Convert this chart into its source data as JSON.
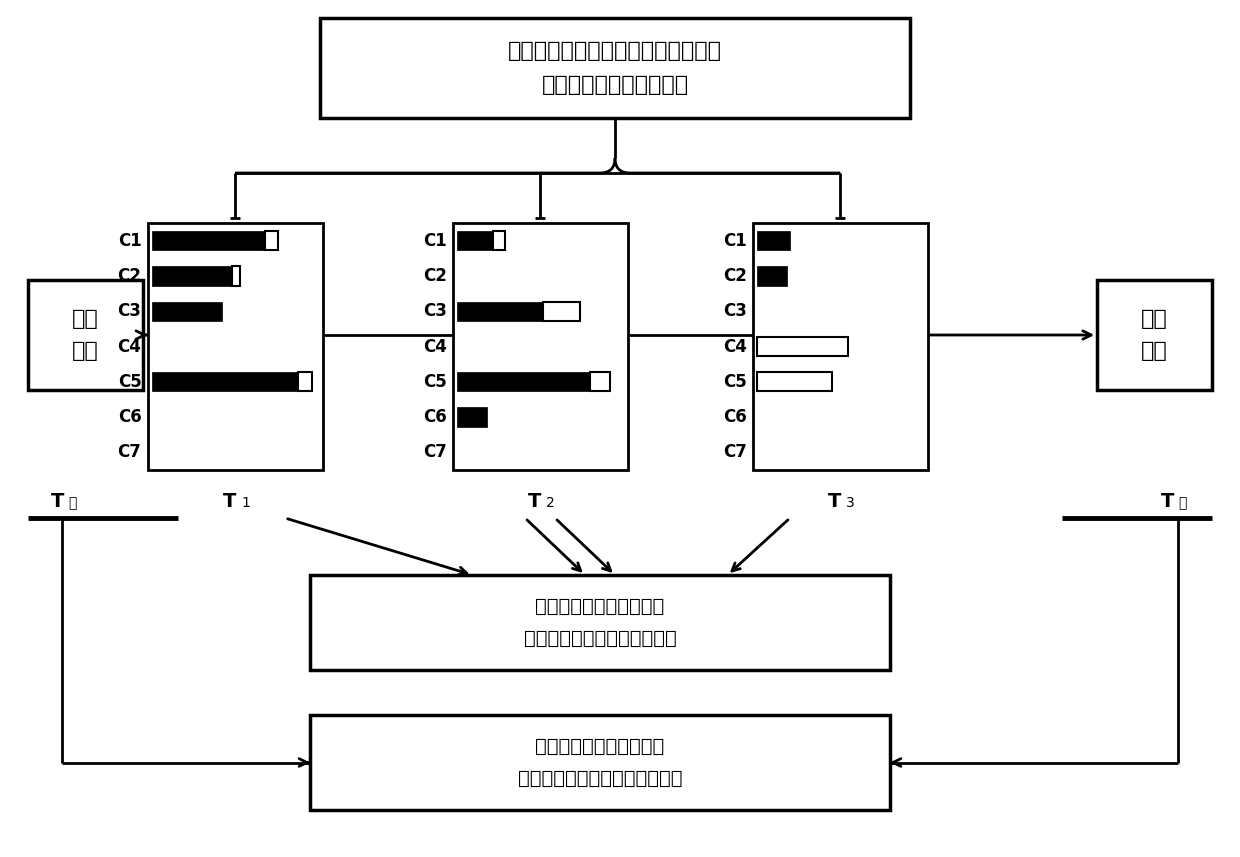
{
  "title_box_text": "小层产量比例随时间动态变化要素：\n时间、深度、测井、测试",
  "box1_text": "生产\n起始",
  "box2_text": "生产\n结束",
  "bottom_box1_text": "采样点内部，逐减渐变，\n适用于两边都有产液剖面限制",
  "bottom_box2_text": "采样点首尾，综合加权，\n适用于只有一边有产液剖面限制",
  "chart_labels": [
    "C1",
    "C2",
    "C3",
    "C4",
    "C5",
    "C6",
    "C7"
  ],
  "chart1_black": [
    0.68,
    0.48,
    0.42,
    0.0,
    0.88,
    0.0,
    0.0
  ],
  "chart1_white": [
    0.08,
    0.05,
    0.0,
    0.0,
    0.08,
    0.0,
    0.0
  ],
  "chart2_black": [
    0.22,
    0.0,
    0.52,
    0.0,
    0.8,
    0.18,
    0.0
  ],
  "chart2_white": [
    0.07,
    0.0,
    0.22,
    0.0,
    0.12,
    0.0,
    0.0
  ],
  "chart3_black": [
    0.2,
    0.18,
    0.0,
    0.0,
    0.0,
    0.0,
    0.0
  ],
  "chart3_white": [
    0.0,
    0.0,
    0.0,
    0.55,
    0.45,
    0.0,
    0.0
  ],
  "bg_color": "#ffffff"
}
